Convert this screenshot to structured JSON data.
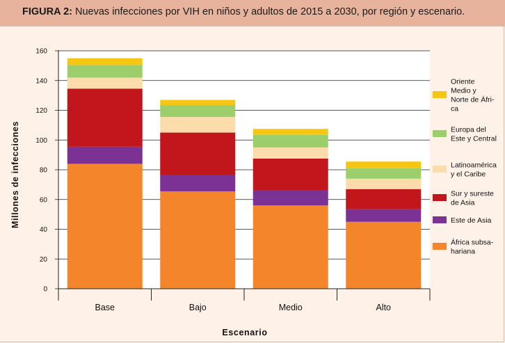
{
  "title": {
    "prefix": "FIGURA 2:",
    "text": " Nuevas infecciones por VIH en niños y adultos de 2015 a 2030, por región y escenario."
  },
  "chart_data": {
    "type": "bar",
    "stacked": true,
    "categories": [
      "Base",
      "Bajo",
      "Medio",
      "Alto"
    ],
    "xlabel": "Escenario",
    "ylabel": "Millones de infecciones",
    "ylim": [
      0,
      160
    ],
    "yticks": [
      0,
      20,
      40,
      60,
      80,
      100,
      120,
      140,
      160
    ],
    "grid": true,
    "legend_position": "right",
    "series": [
      {
        "name": "África subsa-\nhariana",
        "color": "#f4852a",
        "values": [
          84,
          65.5,
          56,
          45
        ]
      },
      {
        "name": "Este de Asia",
        "color": "#7b3294",
        "values": [
          11.5,
          11,
          10,
          8.5
        ]
      },
      {
        "name": "Sur y sureste\nde Asia",
        "color": "#c0161c",
        "values": [
          39,
          28.5,
          21.5,
          13.5
        ]
      },
      {
        "name": "Latinoamérica\ny el Caribe",
        "color": "#fcdcaa",
        "values": [
          7.5,
          10.5,
          7.5,
          7
        ]
      },
      {
        "name": "Europa del\nEste y Central",
        "color": "#9ccf6c",
        "values": [
          8.5,
          8,
          8.5,
          7
        ]
      },
      {
        "name": "Oriente\nMedio y\nNorte de Áfri-\nca",
        "color": "#f7c513",
        "values": [
          4.5,
          3.5,
          4,
          4.5
        ]
      }
    ]
  }
}
